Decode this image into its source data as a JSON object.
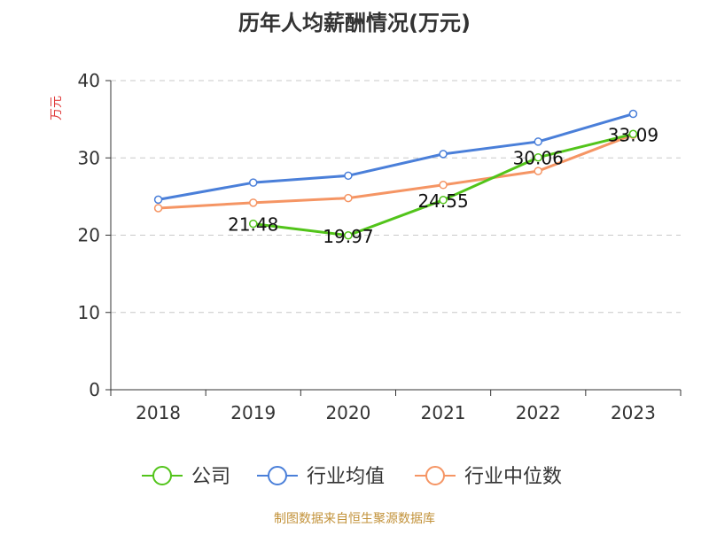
{
  "chart_data": {
    "type": "line",
    "title": "历年人均薪酬情况(万元)",
    "ylabel": "万元",
    "xlabel": "",
    "ylim": [
      0,
      40
    ],
    "yticks": [
      0,
      10,
      20,
      30,
      40
    ],
    "categories": [
      "2018",
      "2019",
      "2020",
      "2021",
      "2022",
      "2023"
    ],
    "grid": true,
    "legend_position": "bottom",
    "series": [
      {
        "name": "公司",
        "color": "#52c41a",
        "values": [
          null,
          21.48,
          19.97,
          24.55,
          30.06,
          33.09
        ],
        "labels": [
          "",
          "21.48",
          "19.97",
          "24.55",
          "30.06",
          "33.09"
        ]
      },
      {
        "name": "行业均值",
        "color": "#4a7fd9",
        "values": [
          24.6,
          26.8,
          27.7,
          30.5,
          32.1,
          35.7
        ]
      },
      {
        "name": "行业中位数",
        "color": "#f59564",
        "values": [
          23.5,
          24.2,
          24.8,
          26.5,
          28.3,
          33.0
        ]
      }
    ],
    "source": "制图数据来自恒生聚源数据库",
    "colors": {
      "title": "#333333",
      "ylabel": "#e03e3e",
      "axis": "#333333",
      "grid": "#c8c8c8",
      "source": "#c2923a"
    }
  }
}
